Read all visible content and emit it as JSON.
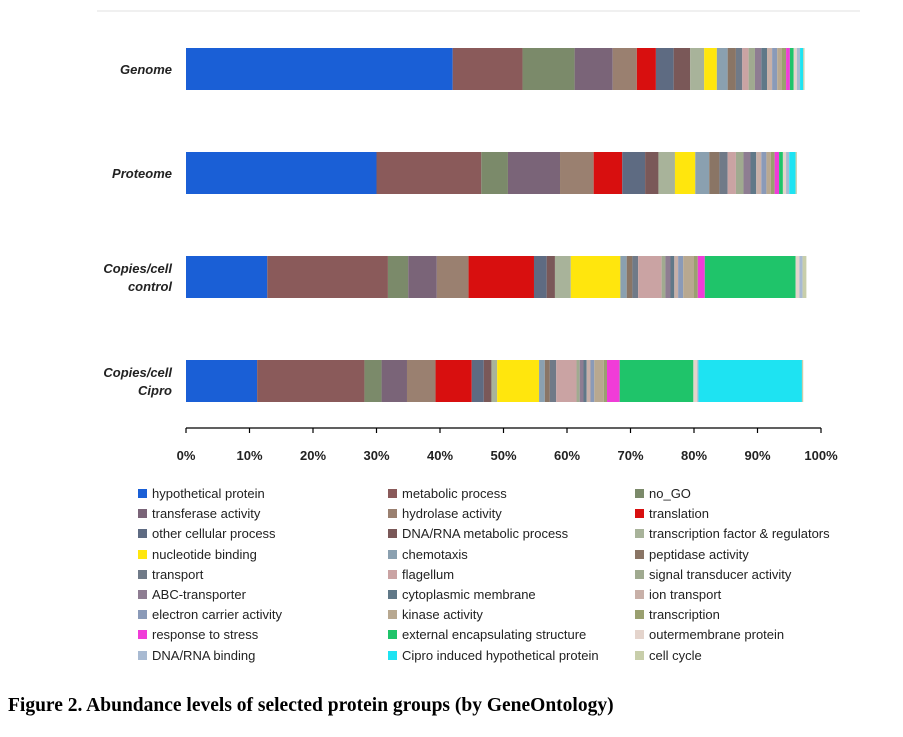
{
  "chart_data": {
    "type": "bar",
    "orientation": "horizontal",
    "stacked": true,
    "title": "",
    "xlabel": "",
    "ylabel": "",
    "xlim": [
      0,
      100
    ],
    "x_ticks": [
      "0%",
      "10%",
      "20%",
      "30%",
      "40%",
      "50%",
      "60%",
      "70%",
      "80%",
      "90%",
      "100%"
    ],
    "categories": [
      "Genome",
      "Proteome",
      "Copies/cell control",
      "Copies/cell Cipro"
    ],
    "category_lines": [
      [
        "Genome"
      ],
      [
        "Proteome"
      ],
      [
        "Copies/cell",
        "control"
      ],
      [
        "Copies/cell",
        "Cipro"
      ]
    ],
    "grid": false,
    "legend_position": "bottom",
    "series": [
      {
        "name": "hypothetical protein",
        "color": "#1a5fd6",
        "values": [
          42.0,
          30.0,
          12.8,
          11.2
        ]
      },
      {
        "name": "metabolic process",
        "color": "#8a5a5a",
        "values": [
          11.0,
          16.5,
          19.0,
          16.9
        ]
      },
      {
        "name": "no_GO",
        "color": "#7b8a6a",
        "values": [
          8.2,
          4.2,
          3.2,
          2.7
        ]
      },
      {
        "name": "transferase activity",
        "color": "#7a6478",
        "values": [
          6.0,
          8.2,
          4.5,
          4.0
        ]
      },
      {
        "name": "hydrolase activity",
        "color": "#9a8070",
        "values": [
          3.8,
          5.3,
          5.0,
          4.5
        ]
      },
      {
        "name": "translation",
        "color": "#d80f0f",
        "values": [
          3.0,
          4.5,
          10.3,
          5.7
        ]
      },
      {
        "name": "other cellular process",
        "color": "#5e6b82",
        "values": [
          2.8,
          3.6,
          2.0,
          1.9
        ]
      },
      {
        "name": "DNA/RNA metabolic process",
        "color": "#7a5858",
        "values": [
          2.6,
          2.1,
          1.3,
          1.2
        ]
      },
      {
        "name": "transcription factor & regulators",
        "color": "#a8b39a",
        "values": [
          2.2,
          2.6,
          2.5,
          0.9
        ]
      },
      {
        "name": "nucleotide binding",
        "color": "#ffe60d",
        "values": [
          2.0,
          3.2,
          7.8,
          6.6
        ]
      },
      {
        "name": "chemotaxis",
        "color": "#8aa0b0",
        "values": [
          1.7,
          2.2,
          1.0,
          0.9
        ]
      },
      {
        "name": "peptidase activity",
        "color": "#8a7565",
        "values": [
          1.3,
          1.6,
          0.9,
          0.8
        ]
      },
      {
        "name": "transport",
        "color": "#707a88",
        "values": [
          1.0,
          1.3,
          0.9,
          1.0
        ]
      },
      {
        "name": "flagellum",
        "color": "#caa3a3",
        "values": [
          1.0,
          1.3,
          3.7,
          3.2
        ]
      },
      {
        "name": "signal transducer activity",
        "color": "#a0aa90",
        "values": [
          1.0,
          1.2,
          0.6,
          0.5
        ]
      },
      {
        "name": "ABC-transporter",
        "color": "#8e7d92",
        "values": [
          1.0,
          1.1,
          0.8,
          0.6
        ]
      },
      {
        "name": "cytoplasmic membrane",
        "color": "#607888",
        "values": [
          0.9,
          0.9,
          0.6,
          0.5
        ]
      },
      {
        "name": "ion transport",
        "color": "#c8b0a8",
        "values": [
          0.8,
          0.8,
          0.6,
          0.6
        ]
      },
      {
        "name": "electron carrier activity",
        "color": "#8a9ab8",
        "values": [
          0.8,
          0.8,
          0.8,
          0.6
        ]
      },
      {
        "name": "kinase activity",
        "color": "#b8a890",
        "values": [
          0.7,
          0.7,
          1.7,
          1.5
        ]
      },
      {
        "name": "transcription",
        "color": "#9aa070",
        "values": [
          0.7,
          0.6,
          0.6,
          0.5
        ]
      },
      {
        "name": "response to stress",
        "color": "#f03cd8",
        "values": [
          0.6,
          0.7,
          1.1,
          2.0
        ]
      },
      {
        "name": "external encapsulating structure",
        "color": "#1fc46a",
        "values": [
          0.6,
          0.6,
          14.3,
          11.6
        ]
      },
      {
        "name": "outermembrane protein",
        "color": "#e4d4cc",
        "values": [
          0.5,
          0.5,
          0.6,
          0.6
        ]
      },
      {
        "name": "DNA/RNA binding",
        "color": "#a8bad2",
        "values": [
          0.5,
          0.5,
          0.5,
          0.2
        ]
      },
      {
        "name": "Cipro induced hypothetical protein",
        "color": "#1ee3f2",
        "values": [
          0.5,
          1.0,
          0.0,
          16.3
        ]
      },
      {
        "name": "cell cycle",
        "color": "#c8ceaa",
        "values": [
          0.2,
          0.2,
          0.6,
          0.2
        ]
      }
    ]
  },
  "caption": "Figure 2. Abundance levels of selected protein groups (by GeneOntology)"
}
